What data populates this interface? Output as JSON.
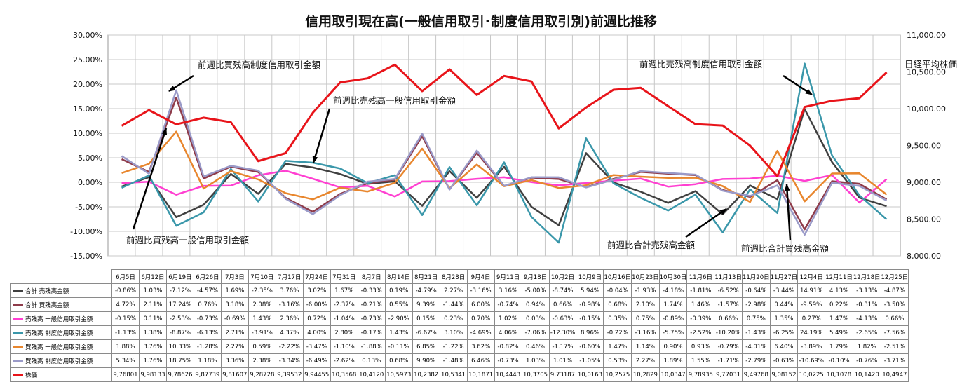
{
  "chart_data": {
    "type": "line",
    "title": "信用取引現在高(一般信用取引･制度信用取引別)前週比推移",
    "y2label": "日経平均株価",
    "categories": [
      "6月5日",
      "6月12日",
      "6月19日",
      "6月26日",
      "7月3日",
      "7月10日",
      "7月17日",
      "7月24日",
      "7月31日",
      "8月7日",
      "8月14日",
      "8月21日",
      "8月28日",
      "9月4日",
      "9月11日",
      "9月18日",
      "10月2日",
      "10月9日",
      "10月16日",
      "10月23日",
      "10月30日",
      "11月6日",
      "11月13日",
      "11月20日",
      "11月27日",
      "12月4日",
      "12月11日",
      "12月18日",
      "12月25日"
    ],
    "y_ticks": [
      "30.00%",
      "25.00%",
      "20.00%",
      "15.00%",
      "10.00%",
      "5.00%",
      "0.00%",
      "-5.00%",
      "-10.00%",
      "-15.00%"
    ],
    "y2_ticks": [
      "11,000.00",
      "10,500.00",
      "10,000.00",
      "9,500.00",
      "9,000.00",
      "8,500.00",
      "8,000.00"
    ],
    "ylim": [
      -15,
      30
    ],
    "y2lim": [
      8000,
      11000
    ],
    "series": [
      {
        "name": "合計 売残高金額",
        "axis": "left",
        "color": "#404040",
        "values": [
          -0.86,
          1.03,
          -7.12,
          -4.57,
          1.69,
          -2.35,
          3.76,
          3.02,
          1.67,
          -0.33,
          0.19,
          -4.79,
          2.27,
          -3.16,
          3.16,
          -5.0,
          -8.74,
          5.94,
          -0.04,
          -1.93,
          -4.18,
          -1.81,
          -6.52,
          -0.64,
          -3.44,
          14.91,
          4.13,
          -3.13,
          -4.87
        ],
        "labels": [
          "-0.86%",
          "1.03%",
          "-7.12%",
          "-4.57%",
          "1.69%",
          "-2.35%",
          "3.76%",
          "3.02%",
          "1.67%",
          "-0.33%",
          "0.19%",
          "-4.79%",
          "2.27%",
          "-3.16%",
          "3.16%",
          "-5.00%",
          "-8.74%",
          "5.94%",
          "-0.04%",
          "-1.93%",
          "-4.18%",
          "-1.81%",
          "-6.52%",
          "-0.64%",
          "-3.44%",
          "14.91%",
          "4.13%",
          "-3.13%",
          "-4.87%"
        ]
      },
      {
        "name": "合計 買残高金額",
        "axis": "left",
        "color": "#8e3b4a",
        "values": [
          4.72,
          2.11,
          17.24,
          0.76,
          3.18,
          2.08,
          -3.16,
          -6.0,
          -2.37,
          -0.21,
          0.55,
          9.39,
          -1.44,
          6.0,
          -0.74,
          0.94,
          0.66,
          -0.98,
          0.68,
          2.1,
          1.74,
          1.46,
          -1.57,
          -2.98,
          0.44,
          -9.59,
          0.22,
          -0.31,
          -3.5
        ],
        "labels": [
          "4.72%",
          "2.11%",
          "17.24%",
          "0.76%",
          "3.18%",
          "2.08%",
          "-3.16%",
          "-6.00%",
          "-2.37%",
          "-0.21%",
          "0.55%",
          "9.39%",
          "-1.44%",
          "6.00%",
          "-0.74%",
          "0.94%",
          "0.66%",
          "-0.98%",
          "0.68%",
          "2.10%",
          "1.74%",
          "1.46%",
          "-1.57%",
          "-2.98%",
          "0.44%",
          "-9.59%",
          "0.22%",
          "-0.31%",
          "-3.50%"
        ]
      },
      {
        "name": "売残高 一般信用取引金額",
        "axis": "left",
        "color": "#ff3fd1",
        "values": [
          -0.15,
          0.11,
          -2.53,
          -0.73,
          -0.69,
          1.43,
          2.36,
          0.72,
          -1.04,
          -0.73,
          -2.9,
          0.15,
          0.23,
          0.7,
          1.02,
          0.03,
          -0.63,
          -0.15,
          0.35,
          0.75,
          -0.89,
          -0.39,
          0.66,
          0.75,
          1.35,
          0.27,
          1.47,
          -4.13,
          0.66
        ],
        "labels": [
          "-0.15%",
          "0.11%",
          "-2.53%",
          "-0.73%",
          "-0.69%",
          "1.43%",
          "2.36%",
          "0.72%",
          "-1.04%",
          "-0.73%",
          "-2.90%",
          "0.15%",
          "0.23%",
          "0.70%",
          "1.02%",
          "0.03%",
          "-0.63%",
          "-0.15%",
          "0.35%",
          "0.75%",
          "-0.89%",
          "-0.39%",
          "0.66%",
          "0.75%",
          "1.35%",
          "0.27%",
          "1.47%",
          "-4.13%",
          "0.66%"
        ]
      },
      {
        "name": "売残高 制度信用取引金額",
        "axis": "left",
        "color": "#3a97aa",
        "values": [
          -1.13,
          1.38,
          -8.87,
          -6.13,
          2.71,
          -3.91,
          4.37,
          4.0,
          2.8,
          -0.17,
          1.43,
          -6.67,
          3.1,
          -4.69,
          4.06,
          -7.06,
          -12.3,
          8.96,
          -0.22,
          -3.16,
          -5.75,
          -2.52,
          -10.2,
          -1.43,
          -6.25,
          24.19,
          5.49,
          -2.65,
          -7.56
        ],
        "labels": [
          "-1.13%",
          "1.38%",
          "-8.87%",
          "-6.13%",
          "2.71%",
          "-3.91%",
          "4.37%",
          "4.00%",
          "2.80%",
          "-0.17%",
          "1.43%",
          "-6.67%",
          "3.10%",
          "-4.69%",
          "4.06%",
          "-7.06%",
          "-12.30%",
          "8.96%",
          "-0.22%",
          "-3.16%",
          "-5.75%",
          "-2.52%",
          "-10.20%",
          "-1.43%",
          "-6.25%",
          "24.19%",
          "5.49%",
          "-2.65%",
          "-7.56%"
        ]
      },
      {
        "name": "買残高 一般信用取引金額",
        "axis": "left",
        "color": "#e8862d",
        "values": [
          1.88,
          3.76,
          10.33,
          -1.28,
          2.27,
          0.59,
          -2.22,
          -3.47,
          -1.1,
          -1.88,
          -0.11,
          6.85,
          -1.22,
          3.62,
          -0.82,
          0.46,
          -1.17,
          -0.6,
          1.47,
          1.14,
          0.9,
          0.93,
          -0.79,
          -4.01,
          6.4,
          -3.89,
          1.79,
          1.82,
          -2.51
        ],
        "labels": [
          "1.88%",
          "3.76%",
          "10.33%",
          "-1.28%",
          "2.27%",
          "0.59%",
          "-2.22%",
          "-3.47%",
          "-1.10%",
          "-1.88%",
          "-0.11%",
          "6.85%",
          "-1.22%",
          "3.62%",
          "-0.82%",
          "0.46%",
          "-1.17%",
          "-0.60%",
          "1.47%",
          "1.14%",
          "0.90%",
          "0.93%",
          "-0.79%",
          "-4.01%",
          "6.40%",
          "-3.89%",
          "1.79%",
          "1.82%",
          "-2.51%"
        ]
      },
      {
        "name": "買残高 制度信用取引金額",
        "axis": "left",
        "color": "#9a9ac8",
        "values": [
          5.34,
          1.76,
          18.75,
          1.18,
          3.36,
          2.38,
          -3.34,
          -6.49,
          -2.62,
          0.13,
          0.68,
          9.9,
          -1.48,
          6.46,
          -0.73,
          1.03,
          1.01,
          -1.05,
          0.53,
          2.27,
          1.89,
          1.55,
          -1.71,
          -2.79,
          -0.63,
          -10.69,
          -0.1,
          -0.76,
          -3.71
        ],
        "labels": [
          "5.34%",
          "1.76%",
          "18.75%",
          "1.18%",
          "3.36%",
          "2.38%",
          "-3.34%",
          "-6.49%",
          "-2.62%",
          "0.13%",
          "0.68%",
          "9.90%",
          "-1.48%",
          "6.46%",
          "-0.73%",
          "1.03%",
          "1.01%",
          "-1.05%",
          "0.53%",
          "2.27%",
          "1.89%",
          "1.55%",
          "-1.71%",
          "-2.79%",
          "-0.63%",
          "-10.69%",
          "-0.10%",
          "-0.76%",
          "-3.71%"
        ]
      },
      {
        "name": "株価",
        "axis": "right",
        "color": "#e8141a",
        "values": [
          9768.01,
          9981.33,
          9786.26,
          9877.39,
          9816.07,
          9287.28,
          9395.32,
          9944.55,
          10356.8,
          10412.0,
          10597.3,
          10238.2,
          10534.1,
          10187.1,
          10444.3,
          10370.5,
          9731.87,
          10016.3,
          10257.5,
          10282.9,
          10034.7,
          9789.35,
          9770.31,
          9497.68,
          9081.52,
          10022.5,
          10107.8,
          10142.0,
          10494.7
        ],
        "labels": [
          "9,76801",
          "9,98133",
          "9,78626",
          "9,87739",
          "9,81607",
          "9,28728",
          "9,39532",
          "9,94455",
          "10,3568",
          "10,4120",
          "10,5973",
          "10,2382",
          "10,5341",
          "10,1871",
          "10,4443",
          "10,3705",
          "9,73187",
          "10,0163",
          "10,2575",
          "10,2829",
          "10,0347",
          "9,78935",
          "9,77031",
          "9,49768",
          "9,08152",
          "10,0225",
          "10,1078",
          "10,1420",
          "10,4947"
        ]
      }
    ],
    "annotations": [
      "前週比買残高制度信用取引金額",
      "前週比売残高一般信用取引金額",
      "前週比売残高制度信用取引金額",
      "前週比買残高一般信用取引金額",
      "前週比合計売残高金額",
      "前週比合計買残高金額"
    ],
    "grid": true
  }
}
